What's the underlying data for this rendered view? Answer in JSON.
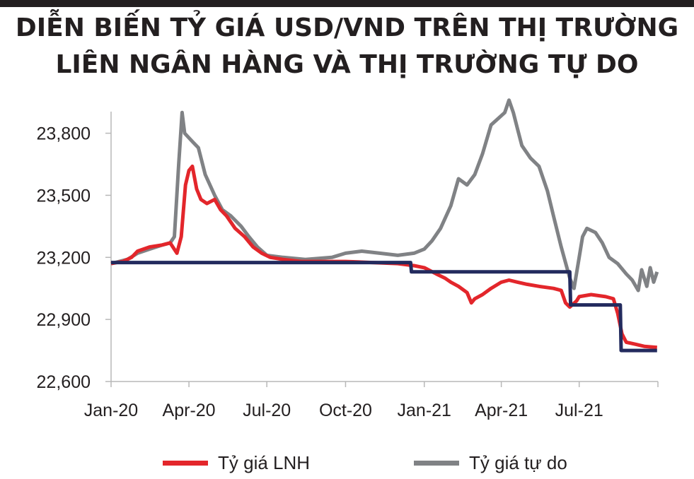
{
  "title_lines": [
    "DIỄN BIẾN TỶ GIÁ USD/VND TRÊN THỊ TRƯỜNG",
    "LIÊN NGÂN HÀNG VÀ THỊ TRƯỜNG TỰ DO"
  ],
  "chart_data": {
    "type": "line",
    "title": "DIỄN BIẾN TỶ GIÁ USD/VND TRÊN THỊ TRƯỜNG LIÊN NGÂN HÀNG VÀ THỊ TRƯỜNG TỰ DO",
    "xlabel": "",
    "ylabel": "",
    "x_type": "date",
    "xlim": [
      "2020-01-01",
      "2021-10-01"
    ],
    "ylim": [
      22600,
      24000
    ],
    "x_ticks": [
      "2020-01-01",
      "2020-04-01",
      "2020-07-01",
      "2020-10-01",
      "2021-01-01",
      "2021-04-01",
      "2021-07-01",
      "2021-10-01"
    ],
    "x_tick_labels": [
      "Jan-20",
      "Apr-20",
      "Jul-20",
      "Oct-20",
      "Jan-21",
      "Apr-21",
      "Jul-21",
      ""
    ],
    "y_ticks": [
      22600,
      22900,
      23200,
      23500,
      23800
    ],
    "y_tick_labels": [
      "22,600",
      "22,900",
      "23,200",
      "23,500",
      "23,800"
    ],
    "grid": false,
    "legend_position": "bottom",
    "series": [
      {
        "name": "Tỷ giá LNH",
        "color": "#e3262b",
        "points": [
          [
            "2020-01-01",
            23170
          ],
          [
            "2020-01-15",
            23180
          ],
          [
            "2020-01-25",
            23200
          ],
          [
            "2020-02-01",
            23230
          ],
          [
            "2020-02-15",
            23250
          ],
          [
            "2020-03-01",
            23260
          ],
          [
            "2020-03-10",
            23270
          ],
          [
            "2020-03-18",
            23220
          ],
          [
            "2020-03-23",
            23300
          ],
          [
            "2020-03-28",
            23550
          ],
          [
            "2020-04-01",
            23620
          ],
          [
            "2020-04-05",
            23640
          ],
          [
            "2020-04-10",
            23530
          ],
          [
            "2020-04-15",
            23480
          ],
          [
            "2020-04-22",
            23460
          ],
          [
            "2020-05-01",
            23480
          ],
          [
            "2020-05-08",
            23430
          ],
          [
            "2020-05-15",
            23400
          ],
          [
            "2020-05-25",
            23340
          ],
          [
            "2020-06-05",
            23300
          ],
          [
            "2020-06-15",
            23250
          ],
          [
            "2020-06-25",
            23220
          ],
          [
            "2020-07-05",
            23200
          ],
          [
            "2020-07-20",
            23190
          ],
          [
            "2020-08-10",
            23180
          ],
          [
            "2020-09-01",
            23180
          ],
          [
            "2020-10-01",
            23180
          ],
          [
            "2020-11-01",
            23175
          ],
          [
            "2020-12-01",
            23170
          ],
          [
            "2020-12-20",
            23160
          ],
          [
            "2021-01-01",
            23150
          ],
          [
            "2021-01-15",
            23120
          ],
          [
            "2021-01-25",
            23100
          ],
          [
            "2021-02-01",
            23080
          ],
          [
            "2021-02-10",
            23060
          ],
          [
            "2021-02-20",
            23030
          ],
          [
            "2021-02-25",
            22980
          ],
          [
            "2021-03-01",
            23000
          ],
          [
            "2021-03-10",
            23020
          ],
          [
            "2021-03-20",
            23050
          ],
          [
            "2021-04-01",
            23080
          ],
          [
            "2021-04-10",
            23090
          ],
          [
            "2021-04-20",
            23080
          ],
          [
            "2021-05-01",
            23070
          ],
          [
            "2021-05-15",
            23060
          ],
          [
            "2021-06-01",
            23050
          ],
          [
            "2021-06-10",
            23040
          ],
          [
            "2021-06-15",
            22980
          ],
          [
            "2021-06-20",
            22960
          ],
          [
            "2021-06-28",
            22990
          ],
          [
            "2021-07-01",
            23010
          ],
          [
            "2021-07-15",
            23020
          ],
          [
            "2021-08-01",
            23010
          ],
          [
            "2021-08-10",
            23000
          ],
          [
            "2021-08-15",
            22930
          ],
          [
            "2021-08-20",
            22830
          ],
          [
            "2021-08-25",
            22790
          ],
          [
            "2021-09-05",
            22780
          ],
          [
            "2021-09-15",
            22770
          ],
          [
            "2021-09-30",
            22765
          ]
        ]
      },
      {
        "name": "Tỷ giá tự do",
        "color": "#808285",
        "points": [
          [
            "2020-01-01",
            23170
          ],
          [
            "2020-01-20",
            23190
          ],
          [
            "2020-02-01",
            23220
          ],
          [
            "2020-02-15",
            23240
          ],
          [
            "2020-03-01",
            23260
          ],
          [
            "2020-03-10",
            23270
          ],
          [
            "2020-03-15",
            23300
          ],
          [
            "2020-03-20",
            23650
          ],
          [
            "2020-03-24",
            23900
          ],
          [
            "2020-03-27",
            23800
          ],
          [
            "2020-04-05",
            23760
          ],
          [
            "2020-04-12",
            23730
          ],
          [
            "2020-04-20",
            23600
          ],
          [
            "2020-05-01",
            23500
          ],
          [
            "2020-05-10",
            23430
          ],
          [
            "2020-05-20",
            23400
          ],
          [
            "2020-06-01",
            23350
          ],
          [
            "2020-06-10",
            23300
          ],
          [
            "2020-06-20",
            23250
          ],
          [
            "2020-07-01",
            23210
          ],
          [
            "2020-07-20",
            23200
          ],
          [
            "2020-08-15",
            23190
          ],
          [
            "2020-09-15",
            23200
          ],
          [
            "2020-10-01",
            23220
          ],
          [
            "2020-10-20",
            23230
          ],
          [
            "2020-11-10",
            23220
          ],
          [
            "2020-12-01",
            23210
          ],
          [
            "2020-12-20",
            23220
          ],
          [
            "2021-01-01",
            23240
          ],
          [
            "2021-01-10",
            23280
          ],
          [
            "2021-01-20",
            23340
          ],
          [
            "2021-02-01",
            23450
          ],
          [
            "2021-02-10",
            23580
          ],
          [
            "2021-02-20",
            23550
          ],
          [
            "2021-03-01",
            23600
          ],
          [
            "2021-03-10",
            23700
          ],
          [
            "2021-03-20",
            23840
          ],
          [
            "2021-03-28",
            23870
          ],
          [
            "2021-04-05",
            23900
          ],
          [
            "2021-04-10",
            23960
          ],
          [
            "2021-04-15",
            23900
          ],
          [
            "2021-04-20",
            23820
          ],
          [
            "2021-04-25",
            23740
          ],
          [
            "2021-05-05",
            23680
          ],
          [
            "2021-05-15",
            23640
          ],
          [
            "2021-05-25",
            23520
          ],
          [
            "2021-06-01",
            23400
          ],
          [
            "2021-06-10",
            23250
          ],
          [
            "2021-06-20",
            23100
          ],
          [
            "2021-06-25",
            23050
          ],
          [
            "2021-07-01",
            23200
          ],
          [
            "2021-07-05",
            23300
          ],
          [
            "2021-07-10",
            23340
          ],
          [
            "2021-07-20",
            23320
          ],
          [
            "2021-07-28",
            23270
          ],
          [
            "2021-08-05",
            23200
          ],
          [
            "2021-08-15",
            23170
          ],
          [
            "2021-08-25",
            23120
          ],
          [
            "2021-09-01",
            23090
          ],
          [
            "2021-09-08",
            23040
          ],
          [
            "2021-09-12",
            23140
          ],
          [
            "2021-09-18",
            23060
          ],
          [
            "2021-09-22",
            23150
          ],
          [
            "2021-09-26",
            23080
          ],
          [
            "2021-09-30",
            23130
          ]
        ]
      },
      {
        "name": "",
        "color": "#232b5e",
        "step": true,
        "points": [
          [
            "2020-01-01",
            23175
          ],
          [
            "2020-12-16",
            23175
          ],
          [
            "2020-12-17",
            23130
          ],
          [
            "2021-06-20",
            23130
          ],
          [
            "2021-06-21",
            22970
          ],
          [
            "2021-08-18",
            22970
          ],
          [
            "2021-08-19",
            22750
          ],
          [
            "2021-09-30",
            22750
          ]
        ]
      }
    ]
  }
}
